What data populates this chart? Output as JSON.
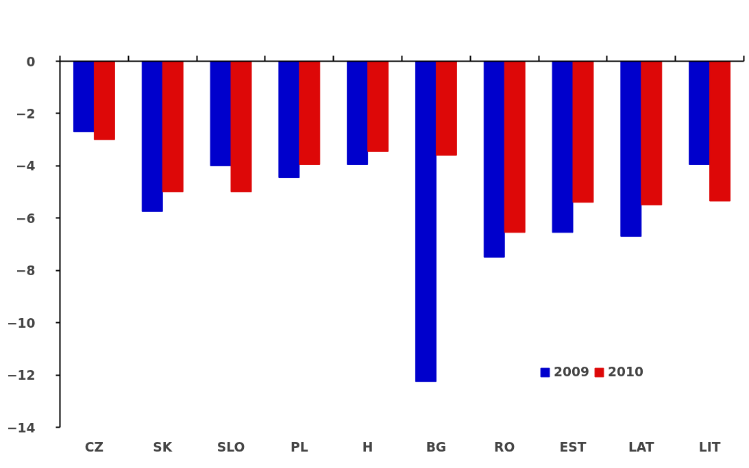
{
  "chart_data": {
    "type": "bar",
    "categories": [
      "CZ",
      "SK",
      "SLO",
      "PL",
      "H",
      "BG",
      "RO",
      "EST",
      "LAT",
      "LIT"
    ],
    "series": [
      {
        "name": "2009",
        "color": "#0000cc",
        "values": [
          -2.7,
          -5.75,
          -4.0,
          -4.45,
          -3.95,
          -12.25,
          -7.5,
          -6.55,
          -6.7,
          -3.95
        ]
      },
      {
        "name": "2010",
        "color": "#dd0808",
        "values": [
          -3.0,
          -5.0,
          -5.0,
          -3.95,
          -3.45,
          -3.6,
          -6.55,
          -5.4,
          -5.5,
          -5.35
        ]
      }
    ],
    "ylim": [
      -14,
      0
    ],
    "yticks": [
      -14,
      -12,
      -10,
      -8,
      -6,
      -4,
      -2,
      0
    ],
    "grid": false,
    "legend": "bottom right"
  }
}
